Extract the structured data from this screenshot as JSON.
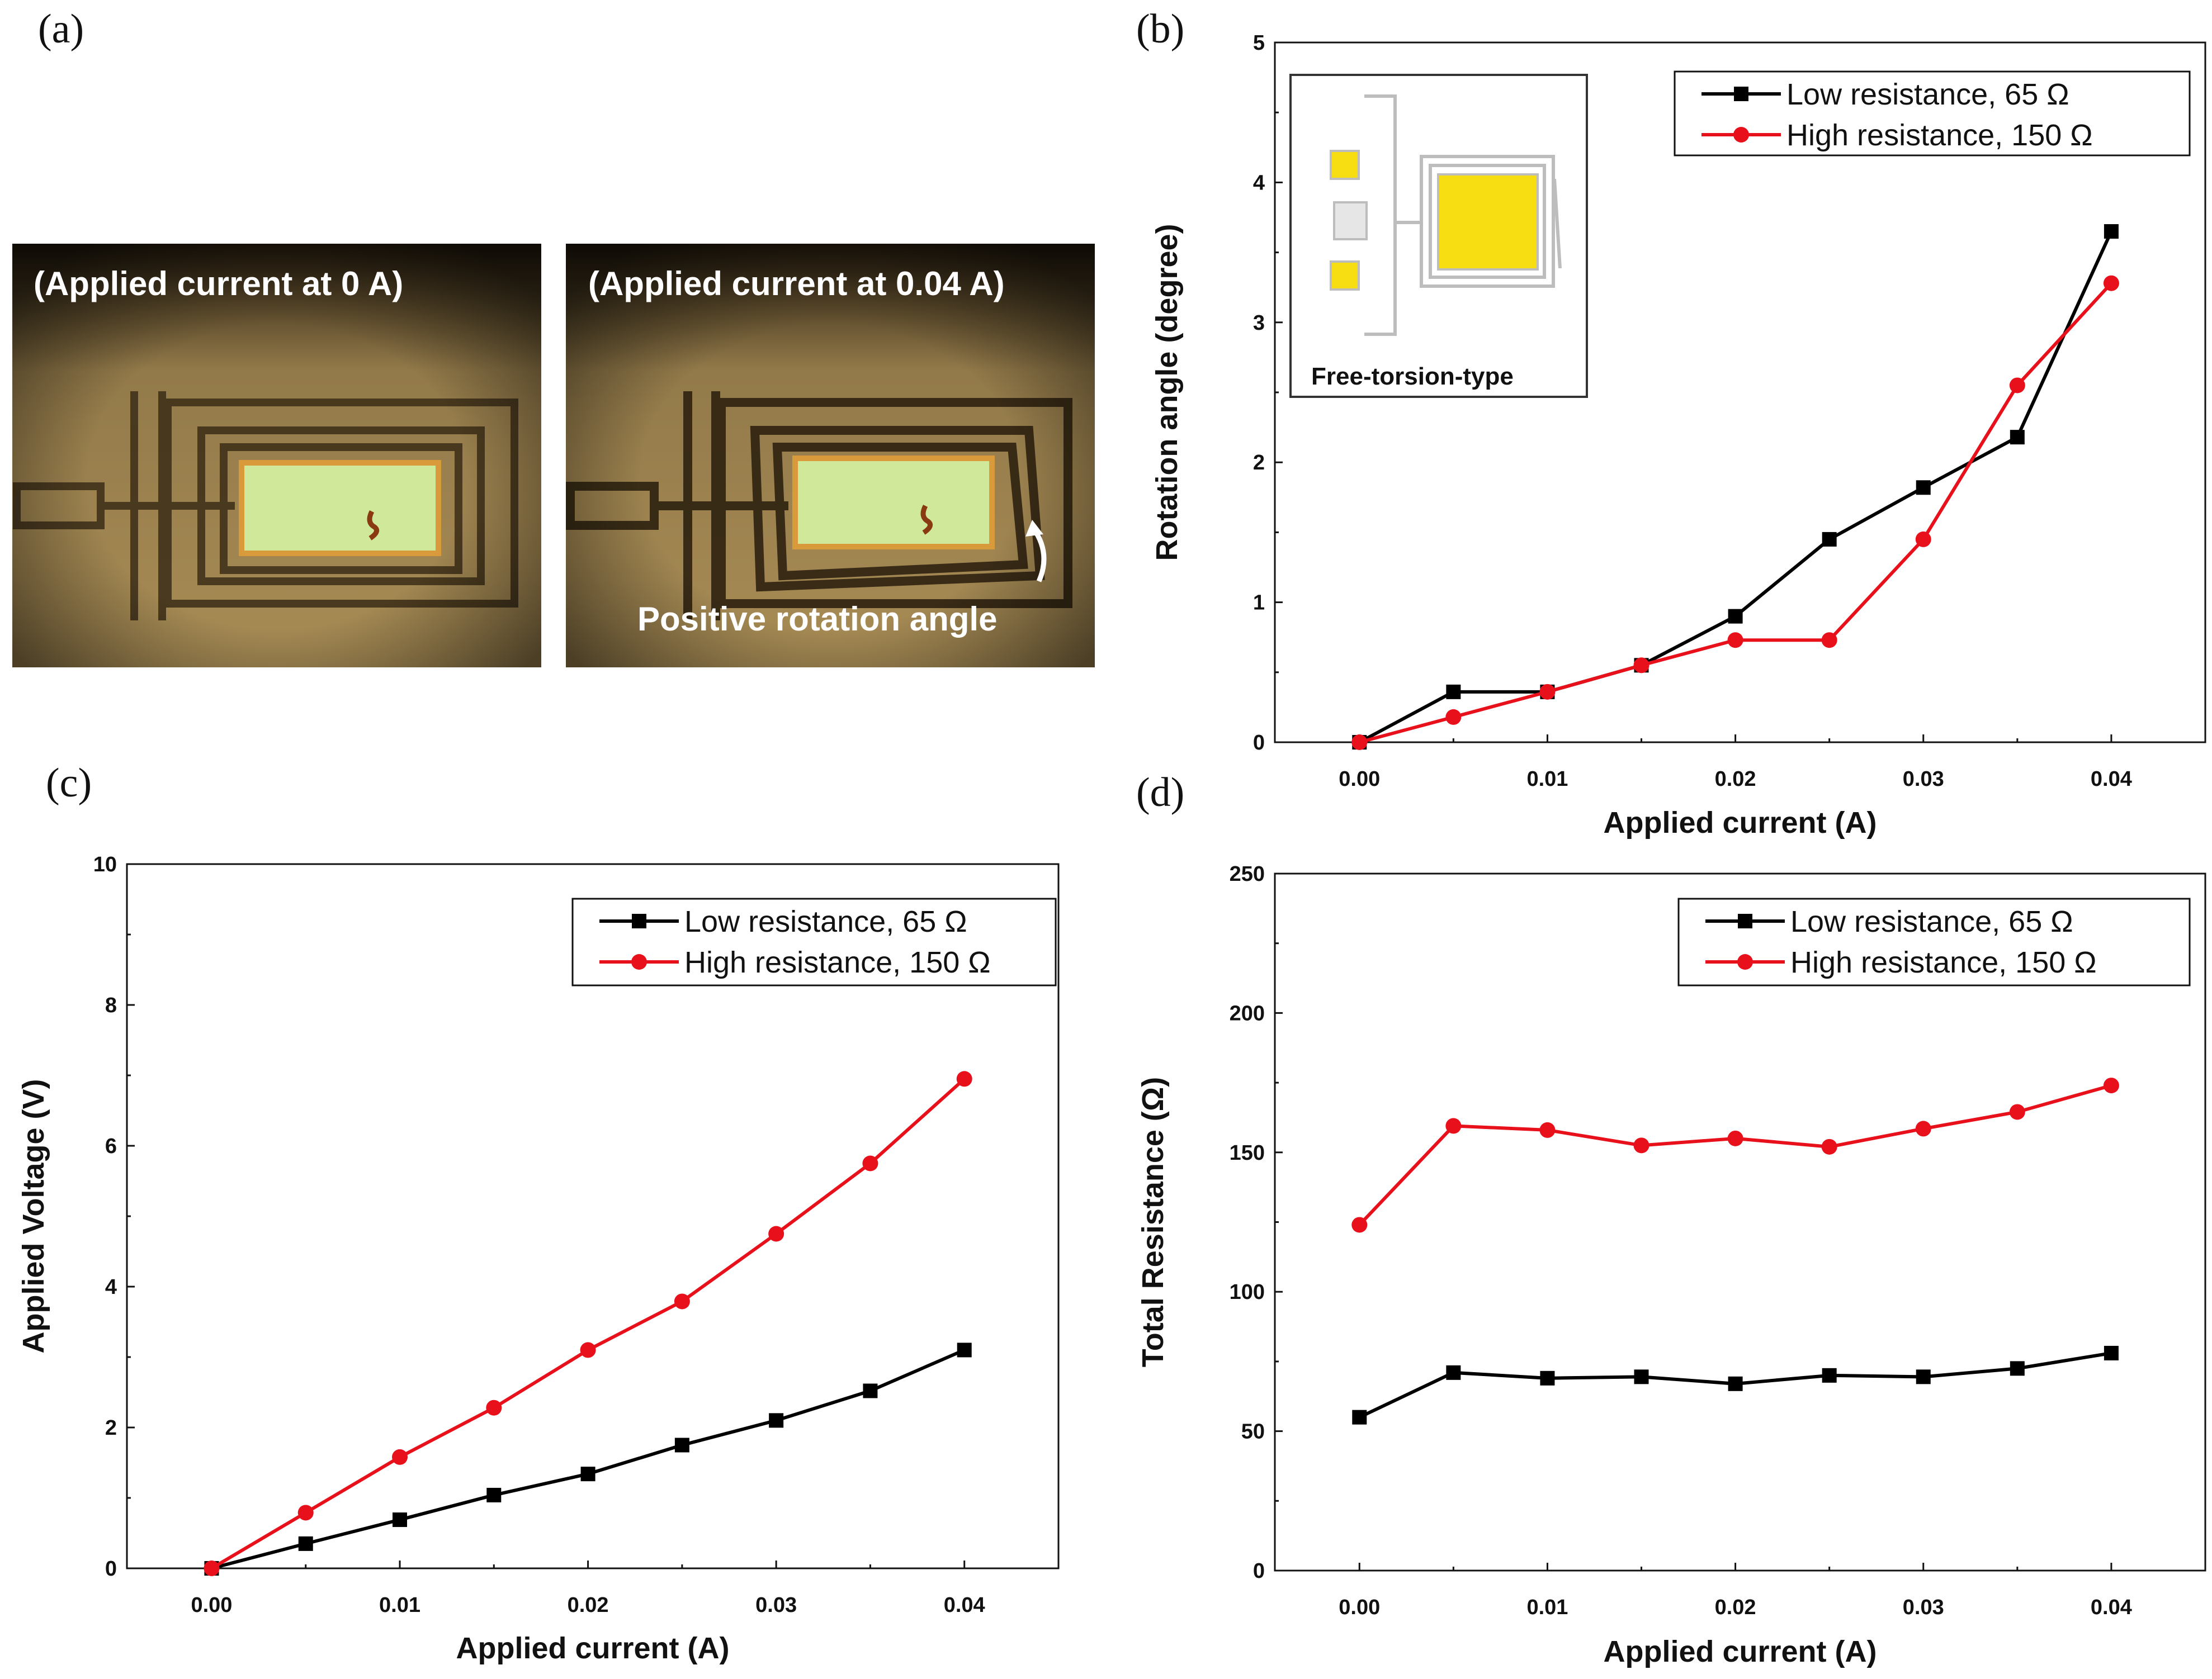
{
  "panels": {
    "a": {
      "label": "(a)",
      "photo_left_caption": "(Applied current at 0 A)",
      "photo_right_caption": "(Applied current at 0.04 A)",
      "annotation": "Positive rotation angle"
    },
    "b": {
      "label": "(b)",
      "inset_caption": "Free-torsion-type"
    },
    "c": {
      "label": "(c)"
    },
    "d": {
      "label": "(d)"
    }
  },
  "colors": {
    "low": "#000000",
    "high": "#e8101a",
    "photo_bg": "#a88c55",
    "mirror": "#cfe89a",
    "pad": "#f7de12"
  },
  "chart_data": [
    {
      "id": "b",
      "type": "line",
      "xlabel": "Applied current (A)",
      "ylabel": "Rotation angle (degree)",
      "xlim": [
        -0.0045,
        0.045
      ],
      "ylim": [
        0,
        5
      ],
      "xticks": [
        0.0,
        0.01,
        0.02,
        0.03,
        0.04
      ],
      "xtick_labels": [
        "0.00",
        "0.01",
        "0.02",
        "0.03",
        "0.04"
      ],
      "yticks": [
        0,
        1,
        2,
        3,
        4,
        5
      ],
      "ytick_labels": [
        "0",
        "1",
        "2",
        "3",
        "4",
        "5"
      ],
      "x": [
        0.0,
        0.005,
        0.01,
        0.015,
        0.02,
        0.025,
        0.03,
        0.035,
        0.04
      ],
      "series": [
        {
          "name": "Low resistance, 65 Ω",
          "marker": "square",
          "color": "#000000",
          "values": [
            0.0,
            0.36,
            0.36,
            0.55,
            0.9,
            1.45,
            1.82,
            2.18,
            3.65
          ]
        },
        {
          "name": "High resistance, 150 Ω",
          "marker": "circle",
          "color": "#e8101a",
          "values": [
            0.0,
            0.18,
            0.36,
            0.55,
            0.73,
            0.73,
            1.45,
            2.55,
            3.28
          ]
        }
      ],
      "legend_position": "top-right"
    },
    {
      "id": "c",
      "type": "line",
      "xlabel": "Applied current (A)",
      "ylabel": "Applied Voltage (V)",
      "xlim": [
        -0.0045,
        0.045
      ],
      "ylim": [
        0,
        10
      ],
      "xticks": [
        0.0,
        0.01,
        0.02,
        0.03,
        0.04
      ],
      "xtick_labels": [
        "0.00",
        "0.01",
        "0.02",
        "0.03",
        "0.04"
      ],
      "yticks": [
        0,
        2,
        4,
        6,
        8,
        10
      ],
      "ytick_labels": [
        "0",
        "2",
        "4",
        "6",
        "8",
        "10"
      ],
      "x": [
        0.0,
        0.005,
        0.01,
        0.015,
        0.02,
        0.025,
        0.03,
        0.035,
        0.04
      ],
      "series": [
        {
          "name": "Low resistance, 65 Ω",
          "marker": "square",
          "color": "#000000",
          "values": [
            0.0,
            0.35,
            0.69,
            1.04,
            1.34,
            1.75,
            2.1,
            2.52,
            3.1
          ]
        },
        {
          "name": "High resistance, 150 Ω",
          "marker": "circle",
          "color": "#e8101a",
          "values": [
            0.0,
            0.79,
            1.58,
            2.28,
            3.1,
            3.79,
            4.75,
            5.75,
            6.95
          ]
        }
      ],
      "legend_position": "top-right"
    },
    {
      "id": "d",
      "type": "line",
      "xlabel": "Applied current (A)",
      "ylabel": "Total Resistance (Ω)",
      "xlim": [
        -0.0045,
        0.045
      ],
      "ylim": [
        0,
        250
      ],
      "xticks": [
        0.0,
        0.01,
        0.02,
        0.03,
        0.04
      ],
      "xtick_labels": [
        "0.00",
        "0.01",
        "0.02",
        "0.03",
        "0.04"
      ],
      "yticks": [
        0,
        50,
        100,
        150,
        200,
        250
      ],
      "ytick_labels": [
        "0",
        "50",
        "100",
        "150",
        "200",
        "250"
      ],
      "x": [
        0.0,
        0.005,
        0.01,
        0.015,
        0.02,
        0.025,
        0.03,
        0.035,
        0.04
      ],
      "series": [
        {
          "name": "Low resistance, 65 Ω",
          "marker": "square",
          "color": "#000000",
          "values": [
            55,
            71,
            69,
            69.5,
            67,
            70,
            69.5,
            72.5,
            78
          ]
        },
        {
          "name": "High resistance, 150 Ω",
          "marker": "circle",
          "color": "#e8101a",
          "values": [
            124,
            159.5,
            158,
            152.5,
            155,
            152,
            158.5,
            164.5,
            174
          ]
        }
      ],
      "legend_position": "top-right"
    }
  ]
}
